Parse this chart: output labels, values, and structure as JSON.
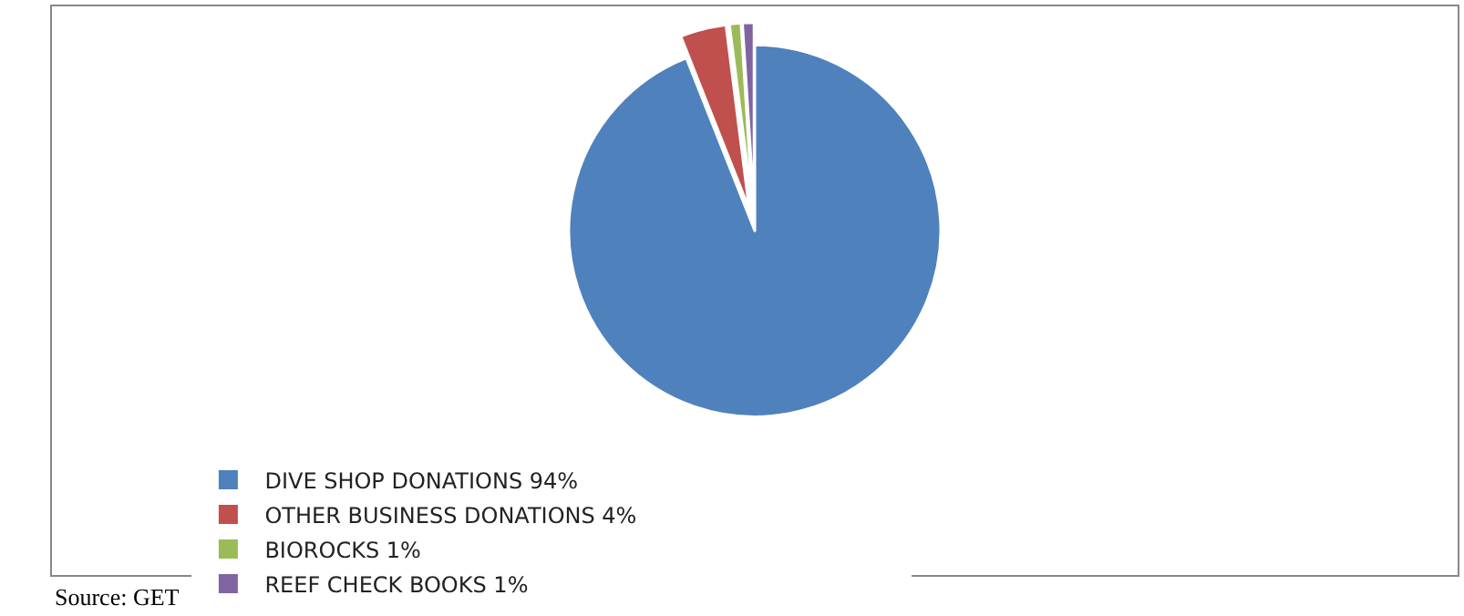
{
  "chart_data": {
    "type": "pie",
    "categories": [
      "DIVE SHOP DONATIONS 94%",
      "OTHER BUSINESS DONATIONS 4%",
      "BIOROCKS 1%",
      "REEF CHECK BOOKS 1%"
    ],
    "values": [
      94,
      4,
      1,
      1
    ],
    "colors": [
      "#4f81bd",
      "#c0504d",
      "#9bbb59",
      "#8064a2"
    ],
    "legend": "bottom",
    "annotations": [
      "Source: GET"
    ]
  }
}
